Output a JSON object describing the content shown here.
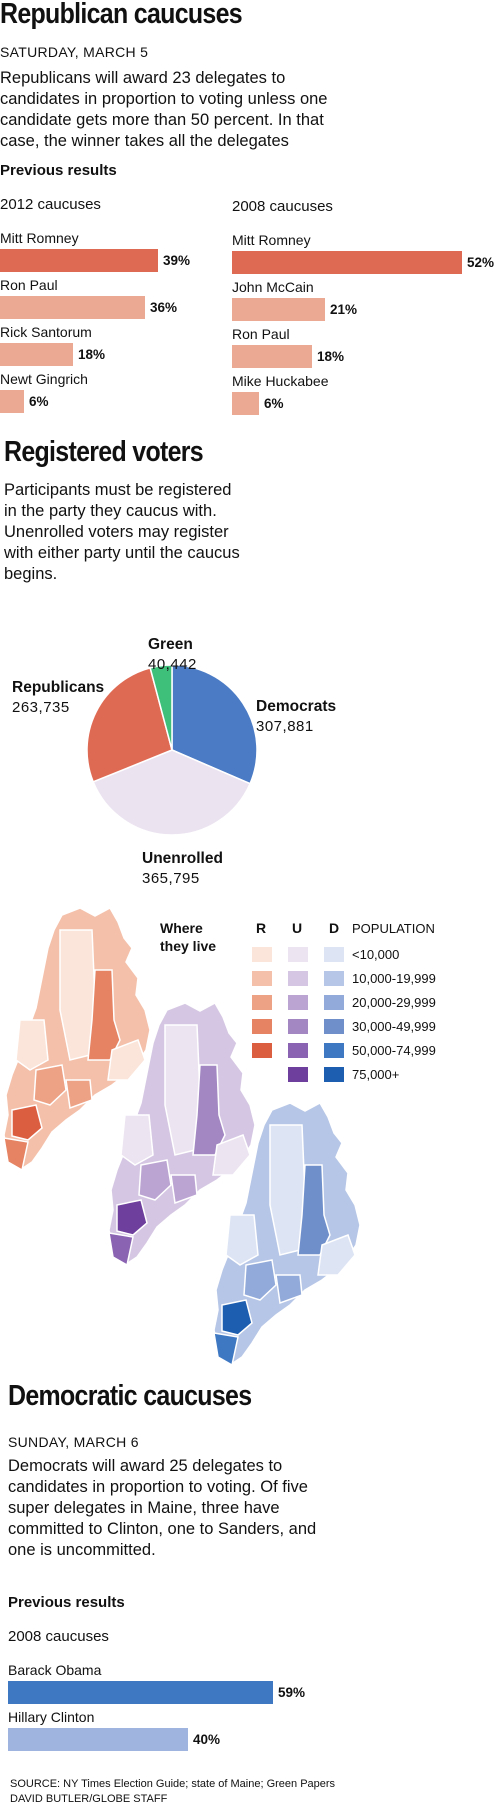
{
  "republican": {
    "title": "Republican caucuses",
    "date": "SATURDAY, MARCH 5",
    "description": "Republicans will award 23 delegates to candidates in proportion to voting unless one candidate gets more than 50 percent. In that case, the winner takes all the delegates",
    "previous_results_label": "Previous results"
  },
  "registered": {
    "title": "Registered voters",
    "description": "Participants must be registered in the party they caucus with.  Unenrolled voters may register with either party until the caucus begins."
  },
  "maps_legend": {
    "title_line1": "Where",
    "title_line2": "they live",
    "col_r": "R",
    "col_u": "U",
    "col_d": "D",
    "col_population": "POPULATION",
    "ranges": [
      "<10,000",
      "10,000-19,999",
      "20,000-29,999",
      "30,000-49,999",
      "50,000-74,999",
      "75,000+"
    ],
    "colors_r": [
      "#fbe4d9",
      "#f4c0aa",
      "#eda185",
      "#e58363",
      "#dc5e41"
    ],
    "colors_u": [
      "#ece4f0",
      "#d5c7e3",
      "#bba4d2",
      "#a287c2",
      "#8a63b2",
      "#6e3f9c"
    ],
    "colors_d": [
      "#dde4f4",
      "#b6c6e6",
      "#91aad9",
      "#6f8fcb",
      "#3f78c2",
      "#1e5eb0"
    ]
  },
  "democratic": {
    "title": "Democratic caucuses",
    "date": "SUNDAY, MARCH 6",
    "description": "Democrats will award 25 delegates to candidates in proportion to voting. Of five super delegates in Maine, three have committed to Clinton, one to Sanders, and one is uncommitted.",
    "previous_results_label": "Previous results"
  },
  "footer": {
    "source": "SOURCE: NY Times Election Guide; state of Maine; Green Papers",
    "credit": "DAVID BUTLER/GLOBE STAFF"
  },
  "chart_data": [
    {
      "type": "bar",
      "title": "2012 caucuses",
      "categories": [
        "Mitt Romney",
        "Ron Paul",
        "Rick Santorum",
        "Newt Gingrich"
      ],
      "values": [
        39,
        36,
        18,
        6
      ],
      "labels": [
        "39%",
        "36%",
        "18%",
        "6%"
      ],
      "colors": [
        "#df6a54",
        "#eba993",
        "#eba993",
        "#eba993"
      ],
      "max": 52
    },
    {
      "type": "bar",
      "title": "2008 caucuses",
      "categories": [
        "Mitt Romney",
        "John McCain",
        "Ron Paul",
        "Mike Huckabee"
      ],
      "values": [
        52,
        21,
        18,
        6
      ],
      "labels": [
        "52%",
        "21%",
        "18%",
        "6%"
      ],
      "colors": [
        "#df6a54",
        "#eba993",
        "#eba993",
        "#eba993"
      ],
      "max": 52
    },
    {
      "type": "pie",
      "title": "",
      "slices": [
        {
          "name": "Democrats",
          "value": 307881,
          "label": "307,881",
          "color": "#4a7bc4"
        },
        {
          "name": "Unenrolled",
          "value": 365795,
          "label": "365,795",
          "color": "#ebe3f0"
        },
        {
          "name": "Republicans",
          "value": 263735,
          "label": "263,735",
          "color": "#df6a54"
        },
        {
          "name": "Green",
          "value": 40442,
          "label": "40,442",
          "color": "#3ebf7a"
        }
      ]
    },
    {
      "type": "bar",
      "title": "2008 caucuses",
      "categories": [
        "Barack Obama",
        "Hillary Clinton"
      ],
      "values": [
        59,
        40
      ],
      "labels": [
        "59%",
        "40%"
      ],
      "colors": [
        "#3f78c2",
        "#9fb5e0"
      ],
      "max": 59
    }
  ]
}
